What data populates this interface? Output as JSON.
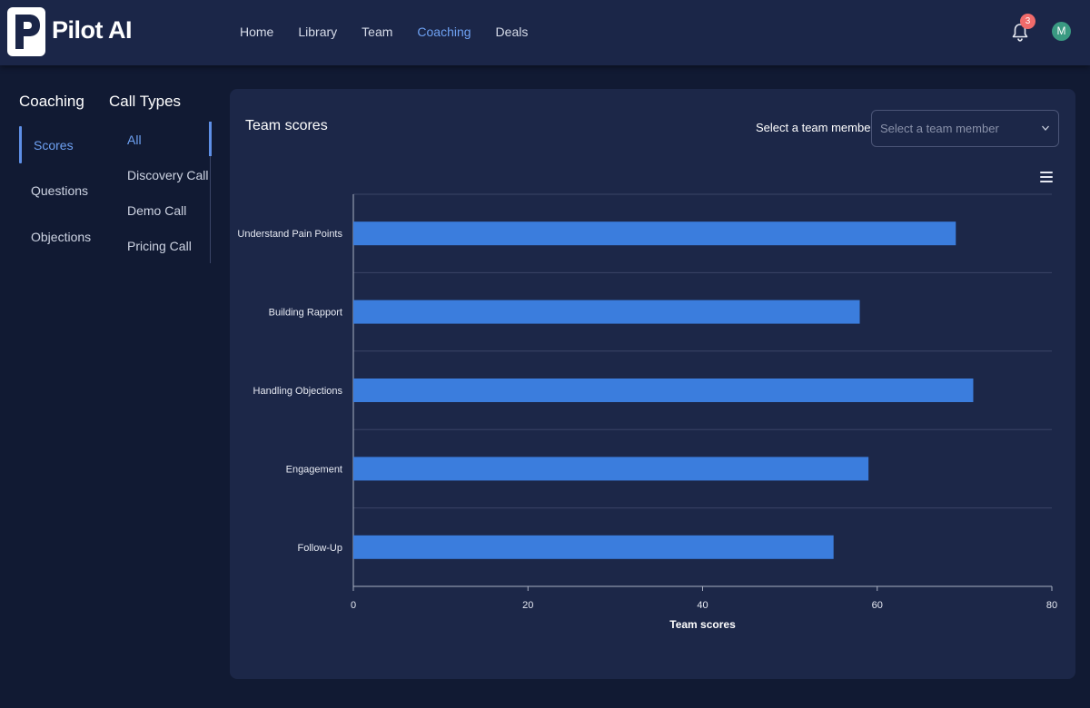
{
  "app": {
    "name": "Pilot AI"
  },
  "nav": {
    "items": [
      "Home",
      "Library",
      "Team",
      "Coaching",
      "Deals"
    ],
    "active": "Coaching"
  },
  "header": {
    "notification_count": "3",
    "avatar_initial": "M"
  },
  "sidebar": {
    "coaching_title": "Coaching",
    "coaching_items": [
      "Scores",
      "Questions",
      "Objections"
    ],
    "coaching_active": "Scores",
    "calltypes_title": "Call Types",
    "calltypes_items": [
      "All",
      "Discovery Call",
      "Demo Call",
      "Pricing Call"
    ],
    "calltypes_active": "All"
  },
  "panel": {
    "title": "Team scores",
    "select_label": "Select a team member :",
    "select_placeholder": "Select a team member"
  },
  "colors": {
    "bar": "#3b7ddd",
    "accent": "#6ea1f2",
    "badge": "#f06b6b",
    "avatar": "#3a9a82"
  },
  "chart_data": {
    "type": "bar",
    "orientation": "horizontal",
    "categories": [
      "Understand Pain Points",
      "Building Rapport",
      "Handling Objections",
      "Engagement",
      "Follow-Up"
    ],
    "values": [
      69,
      58,
      71,
      59,
      55
    ],
    "xlabel": "Team scores",
    "xlim": [
      0,
      80
    ],
    "xticks": [
      0,
      20,
      40,
      60,
      80
    ],
    "grid": true,
    "legend": "none"
  }
}
